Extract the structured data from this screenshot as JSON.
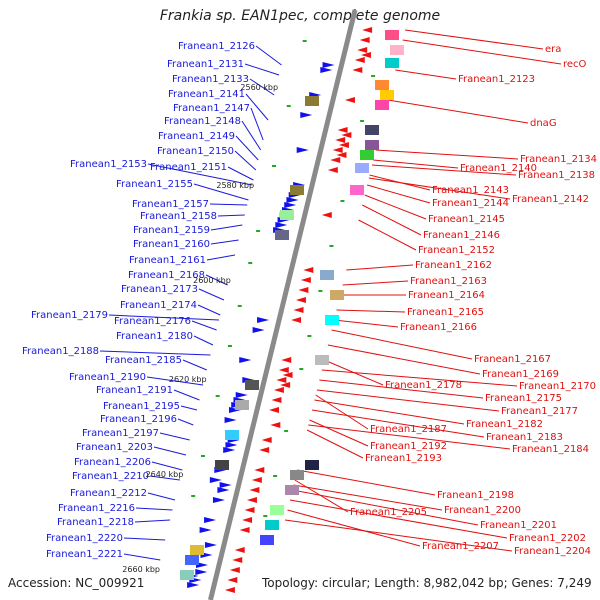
{
  "title": "Frankia sp. EAN1pec, complete genome",
  "accession": "Accession: NC_009921",
  "topology": "Topology: circular; Length: 8,982,042 bp; Genes: 7,249",
  "kbp_ticks": [
    "2560 kbp",
    "2580 kbp",
    "2600 kbp",
    "2620 kbp",
    "2640 kbp",
    "2660 kbp"
  ],
  "left_labels": [
    "Franean1_2126",
    "Franean1_2131",
    "Franean1_2133",
    "Franean1_2141",
    "Franean1_2147",
    "Franean1_2148",
    "Franean1_2149",
    "Franean1_2150",
    "Franean1_2153",
    "Franean1_2151",
    "Franean1_2155",
    "Franean1_2157",
    "Franean1_2158",
    "Franean1_2159",
    "Franean1_2160",
    "Franean1_2161",
    "Franean1_2168",
    "Franean1_2173",
    "Franean1_2174",
    "Franean1_2179",
    "Franean1_2176",
    "Franean1_2180",
    "Franean1_2188",
    "Franean1_2185",
    "Franean1_2190",
    "Franean1_2191",
    "Franean1_2195",
    "Franean1_2196",
    "Franean1_2197",
    "Franean1_2203",
    "Franean1_2206",
    "Franean1_2210",
    "Franean1_2212",
    "Franean1_2216",
    "Franean1_2218",
    "Franean1_2220",
    "Franean1_2221"
  ],
  "right_labels": [
    "era",
    "recO",
    "Franean1_2123",
    "dnaG",
    "Franean1_2134",
    "Franean1_2140",
    "Franean1_2138",
    "Franean1_2143",
    "Franean1_2142",
    "Franean1_2144",
    "Franean1_2145",
    "Franean1_2146",
    "Franean1_2152",
    "Franean1_2162",
    "Franean1_2163",
    "Franean1_2164",
    "Franean1_2165",
    "Franean1_2166",
    "Franean1_2167",
    "Franean1_2169",
    "Franean1_2178",
    "Franean1_2170",
    "Franean1_2175",
    "Franean1_2177",
    "Franean1_2182",
    "Franean1_2187",
    "Franean1_2183",
    "Franean1_2192",
    "Franean1_2184",
    "Franean1_2193",
    "Franean1_2198",
    "Franean1_2205",
    "Franean1_2200",
    "Franean1_2201",
    "Franean1_2202",
    "Franean1_2207",
    "Franean1_2204"
  ],
  "colors": {
    "left_label": "#1a1adb",
    "right_label": "#e01010",
    "backbone": "#8a8a8a"
  }
}
